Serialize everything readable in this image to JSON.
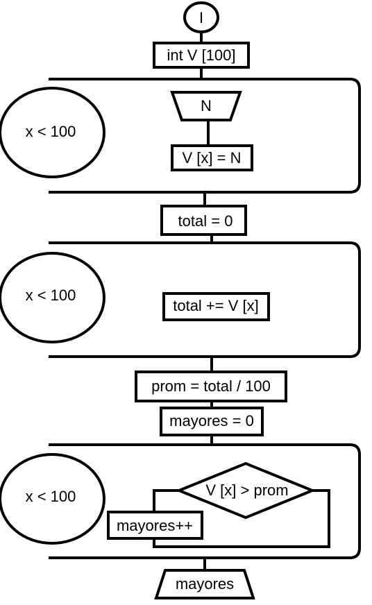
{
  "flowchart": {
    "start_label": "I",
    "declaration": "int V [100]",
    "loop1": {
      "condition": "x < 100",
      "input_label": "N",
      "assign": "V [x] = N"
    },
    "total_init": "total = 0",
    "loop2": {
      "condition": "x < 100",
      "accumulate": "total += V [x]"
    },
    "average": "prom = total / 100",
    "mayores_init": "mayores = 0",
    "loop3": {
      "condition": "x < 100",
      "decision": "V [x] > prom",
      "increment": "mayores++"
    },
    "output_label": "mayores"
  },
  "colors": {
    "stroke": "#000000",
    "background": "#ffffff"
  }
}
